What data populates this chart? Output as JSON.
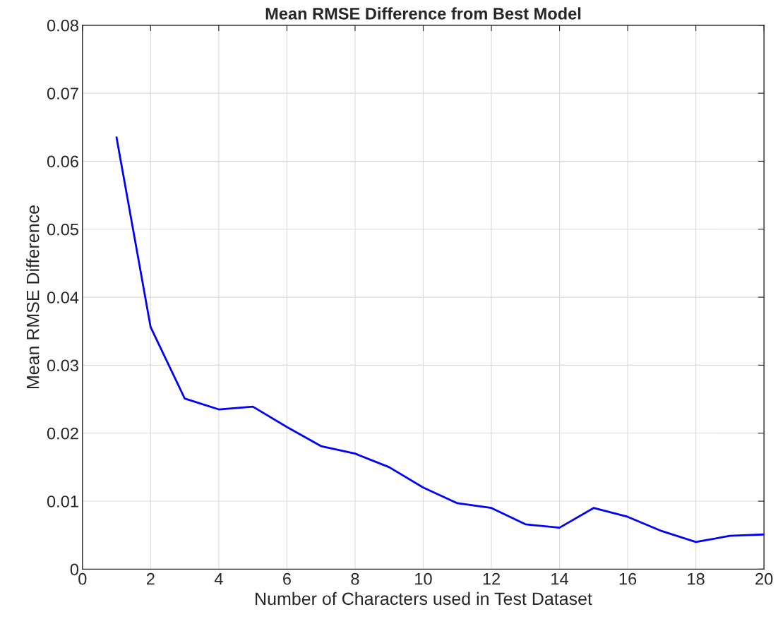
{
  "chart_data": {
    "type": "line",
    "title": "Mean RMSE Difference from Best Model",
    "xlabel": "Number of Characters used in Test Dataset",
    "ylabel": "Mean RMSE Difference",
    "x": [
      1,
      2,
      3,
      4,
      5,
      6,
      7,
      8,
      9,
      10,
      11,
      12,
      13,
      14,
      15,
      16,
      17,
      18,
      19,
      20
    ],
    "series": [
      {
        "color": "#0000ff",
        "values": [
          0.0635,
          0.0356,
          0.0251,
          0.0235,
          0.0239,
          0.0209,
          0.0181,
          0.017,
          0.015,
          0.012,
          0.0097,
          0.009,
          0.0066,
          0.0061,
          0.009,
          0.0077,
          0.0056,
          0.004,
          0.0049,
          0.0051
        ]
      }
    ],
    "xlim": [
      0,
      20
    ],
    "xticks": [
      0,
      2,
      4,
      6,
      8,
      10,
      12,
      14,
      16,
      18,
      20
    ],
    "ylim": [
      0,
      0.08
    ],
    "yticks": [
      0,
      0.01,
      0.02,
      0.03,
      0.04,
      0.05,
      0.06,
      0.07,
      0.08
    ],
    "grid": true,
    "marker": "none",
    "line_style": "solid"
  }
}
